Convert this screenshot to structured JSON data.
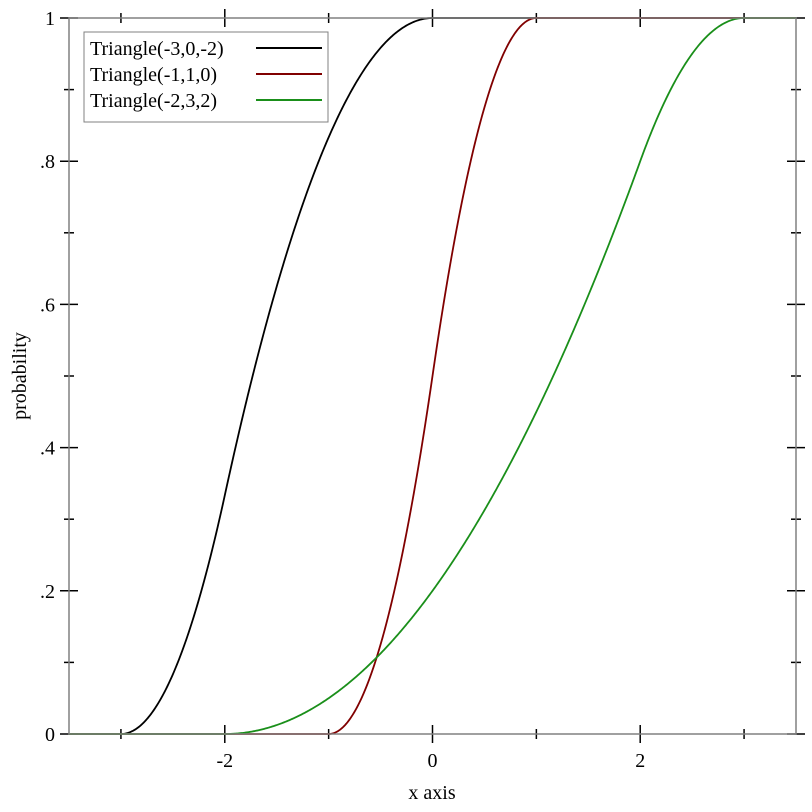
{
  "chart_data": {
    "type": "line",
    "title": "",
    "xlabel": "x axis",
    "ylabel": "probability",
    "xlim": [
      -3.5,
      3.5
    ],
    "ylim": [
      0,
      1
    ],
    "grid": false,
    "legend_position": "top-left",
    "x_ticks_major": [
      -2,
      0,
      2
    ],
    "x_tick_labels": [
      "-2",
      "0",
      "2"
    ],
    "x_ticks_minor": [
      -3,
      -1,
      1,
      3
    ],
    "y_ticks_major": [
      0,
      0.2,
      0.4,
      0.6,
      0.8,
      1
    ],
    "y_tick_labels": [
      "0",
      ".2",
      ".4",
      ".6",
      ".8",
      "1"
    ],
    "y_ticks_minor": [
      0.1,
      0.3,
      0.5,
      0.7,
      0.9
    ],
    "series": [
      {
        "name": "Triangle(-3,0,-2)",
        "color": "#000000",
        "function": "triangle CDF",
        "min": -3,
        "max": 0,
        "mode": -2
      },
      {
        "name": "Triangle(-1,1,0)",
        "color": "#800000",
        "function": "triangle CDF",
        "min": -1,
        "max": 1,
        "mode": 0
      },
      {
        "name": "Triangle(-2,3,2)",
        "color": "#1a8f1a",
        "function": "triangle CDF",
        "min": -2,
        "max": 3,
        "mode": 2
      }
    ]
  }
}
